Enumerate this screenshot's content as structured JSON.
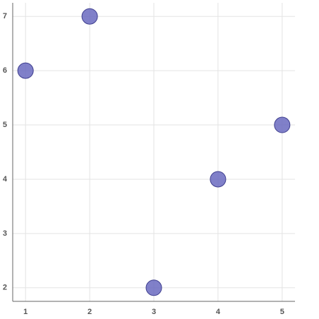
{
  "chart_data": {
    "type": "scatter",
    "x": [
      1,
      2,
      3,
      4,
      5
    ],
    "values": [
      6,
      7,
      2,
      4,
      5
    ],
    "color": "#6a6ac0",
    "xlim": [
      0.8,
      5.2
    ],
    "ylim": [
      1.75,
      7.25
    ],
    "xticks": [
      1,
      2,
      3,
      4,
      5
    ],
    "yticks": [
      2,
      3,
      4,
      5,
      6,
      7
    ],
    "grid": true
  }
}
